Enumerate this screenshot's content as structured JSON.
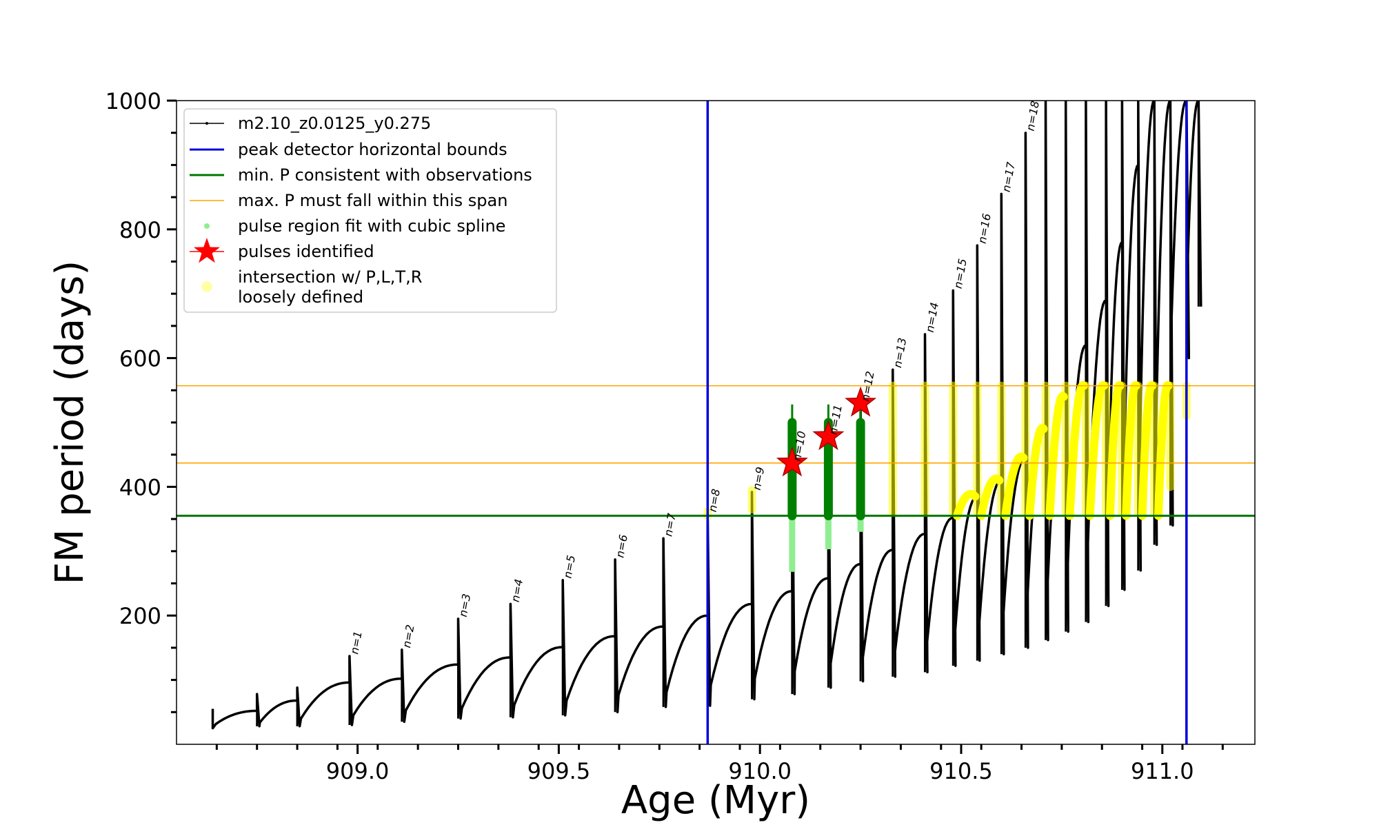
{
  "chart_data": {
    "type": "line",
    "xlabel": "Age (Myr)",
    "ylabel": "FM period (days)",
    "xlim": [
      908.55,
      911.23
    ],
    "ylim": [
      0,
      1000
    ],
    "x_ticks": [
      909.0,
      909.5,
      910.0,
      910.5,
      911.0
    ],
    "x_tick_labels": [
      "909.0",
      "909.5",
      "910.0",
      "910.5",
      "911.0"
    ],
    "y_ticks": [
      200,
      400,
      600,
      800,
      1000
    ],
    "y_tick_labels": [
      "200",
      "400",
      "600",
      "800",
      "1000"
    ],
    "series_name": "m2.10_z0.0125_y0.275",
    "pulses": [
      {
        "label": "",
        "start": 908.64,
        "t": 908.64,
        "p": 55,
        "min": 25,
        "rise": 0
      },
      {
        "label": "",
        "start": 908.64,
        "t": 908.75,
        "p": 78,
        "min": 28,
        "rise": 52
      },
      {
        "label": "",
        "start": 908.75,
        "t": 908.85,
        "p": 88,
        "min": 28,
        "rise": 68
      },
      {
        "label": "n=1",
        "start": 908.85,
        "t": 908.98,
        "p": 137,
        "min": 30,
        "rise": 96
      },
      {
        "label": "n=2",
        "start": 908.98,
        "t": 909.11,
        "p": 147,
        "min": 35,
        "rise": 102
      },
      {
        "label": "n=3",
        "start": 909.11,
        "t": 909.25,
        "p": 195,
        "min": 40,
        "rise": 124
      },
      {
        "label": "n=4",
        "start": 909.25,
        "t": 909.38,
        "p": 218,
        "min": 42,
        "rise": 135
      },
      {
        "label": "n=5",
        "start": 909.38,
        "t": 909.51,
        "p": 255,
        "min": 45,
        "rise": 151
      },
      {
        "label": "n=6",
        "start": 909.51,
        "t": 909.64,
        "p": 287,
        "min": 50,
        "rise": 168
      },
      {
        "label": "n=7",
        "start": 909.64,
        "t": 909.76,
        "p": 320,
        "min": 58,
        "rise": 183
      },
      {
        "label": "n=8",
        "start": 909.76,
        "t": 909.87,
        "p": 358,
        "min": 60,
        "rise": 200
      },
      {
        "label": "n=9",
        "start": 909.87,
        "t": 909.98,
        "p": 392,
        "min": 70,
        "rise": 218
      },
      {
        "label": "n=10",
        "start": 909.98,
        "t": 910.08,
        "p": 437,
        "min": 78,
        "rise": 238
      },
      {
        "label": "n=11",
        "start": 910.08,
        "t": 910.17,
        "p": 478,
        "min": 88,
        "rise": 258
      },
      {
        "label": "n=12",
        "start": 910.17,
        "t": 910.25,
        "p": 530,
        "min": 98,
        "rise": 280
      },
      {
        "label": "n=13",
        "start": 910.25,
        "t": 910.33,
        "p": 582,
        "min": 105,
        "rise": 302
      },
      {
        "label": "n=14",
        "start": 910.33,
        "t": 910.41,
        "p": 637,
        "min": 112,
        "rise": 327
      },
      {
        "label": "n=15",
        "start": 910.41,
        "t": 910.48,
        "p": 705,
        "min": 122,
        "rise": 352
      },
      {
        "label": "n=16",
        "start": 910.48,
        "t": 910.54,
        "p": 775,
        "min": 130,
        "rise": 385
      },
      {
        "label": "n=17",
        "start": 910.54,
        "t": 910.6,
        "p": 855,
        "min": 140,
        "rise": 410
      },
      {
        "label": "n=18",
        "start": 910.6,
        "t": 910.66,
        "p": 950,
        "min": 150,
        "rise": 445
      },
      {
        "label": "",
        "start": 910.66,
        "t": 910.71,
        "p": 1000,
        "min": 162,
        "rise": 490
      },
      {
        "label": "",
        "start": 910.71,
        "t": 910.76,
        "p": 1000,
        "min": 175,
        "rise": 540
      },
      {
        "label": "",
        "start": 910.76,
        "t": 910.81,
        "p": 1000,
        "min": 190,
        "rise": 620
      },
      {
        "label": "",
        "start": 910.81,
        "t": 910.86,
        "p": 1000,
        "min": 215,
        "rise": 690
      },
      {
        "label": "",
        "start": 910.86,
        "t": 910.9,
        "p": 1000,
        "min": 240,
        "rise": 780
      },
      {
        "label": "",
        "start": 910.9,
        "t": 910.94,
        "p": 1000,
        "min": 270,
        "rise": 900
      },
      {
        "label": "",
        "start": 910.94,
        "t": 910.98,
        "p": 1000,
        "min": 310,
        "rise": 1000
      },
      {
        "label": "",
        "start": 910.98,
        "t": 911.02,
        "p": 1000,
        "min": 340,
        "rise": 1000
      },
      {
        "label": "",
        "start": 911.02,
        "t": 911.06,
        "p": 1000,
        "min": 600,
        "rise": 1000
      },
      {
        "label": "",
        "start": 911.06,
        "t": 911.09,
        "p": 1000,
        "min": 680,
        "rise": 1000
      }
    ],
    "peak_detector_bounds": [
      909.87,
      911.06
    ],
    "min_period": 355,
    "max_period_span": [
      437,
      557
    ],
    "cubic_spline_regions": [
      {
        "t": 910.08,
        "low": 268,
        "high": 500
      },
      {
        "t": 910.17,
        "low": 303,
        "high": 500
      },
      {
        "t": 910.25,
        "low": 330,
        "high": 500
      }
    ],
    "pulses_identified": [
      {
        "t": 910.08,
        "p": 437
      },
      {
        "t": 910.17,
        "p": 478
      },
      {
        "t": 910.25,
        "p": 530
      }
    ],
    "intersection_spikes": [
      {
        "t": 909.87,
        "low": 355,
        "high": 362
      },
      {
        "t": 909.98,
        "low": 365,
        "high": 395
      },
      {
        "t": 910.33,
        "low": 360,
        "high": 557
      },
      {
        "t": 910.41,
        "low": 360,
        "high": 557
      },
      {
        "t": 910.48,
        "low": 360,
        "high": 557
      },
      {
        "t": 910.54,
        "low": 360,
        "high": 557
      },
      {
        "t": 910.6,
        "low": 360,
        "high": 557
      },
      {
        "t": 910.66,
        "low": 360,
        "high": 557
      },
      {
        "t": 910.71,
        "low": 360,
        "high": 557
      },
      {
        "t": 910.76,
        "low": 360,
        "high": 557
      },
      {
        "t": 910.81,
        "low": 360,
        "high": 557
      },
      {
        "t": 910.86,
        "low": 360,
        "high": 557
      },
      {
        "t": 910.9,
        "low": 360,
        "high": 557
      },
      {
        "t": 910.94,
        "low": 360,
        "high": 557
      },
      {
        "t": 910.98,
        "low": 360,
        "high": 557
      },
      {
        "t": 911.02,
        "low": 400,
        "high": 557
      },
      {
        "t": 911.06,
        "low": 510,
        "high": 557
      }
    ],
    "legend": [
      {
        "key": "model",
        "label": "m2.10_z0.0125_y0.275"
      },
      {
        "key": "bounds",
        "label": "peak detector horizontal bounds"
      },
      {
        "key": "minp",
        "label": "min. P consistent with observations"
      },
      {
        "key": "maxp",
        "label": "max. P must fall within this span"
      },
      {
        "key": "spline",
        "label": "pulse region fit with cubic spline"
      },
      {
        "key": "star",
        "label": "pulses identified"
      },
      {
        "key": "yellow",
        "label": "intersection w/ P,L,T,R",
        "label2": "loosely defined"
      }
    ],
    "colors": {
      "model": "#000000",
      "bounds": "#0000dd",
      "minp": "#007700",
      "maxp": "#ffa500",
      "spline_light": "#90ee90",
      "spline_dark": "#008000",
      "star": "#ff0000",
      "yellow": "#ffff00"
    }
  }
}
